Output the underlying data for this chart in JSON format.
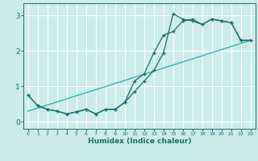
{
  "xlabel": "Humidex (Indice chaleur)",
  "background_color": "#ccecea",
  "grid_color": "#ffffff",
  "line_color": "#1a6b6b",
  "line_color2": "#2ab5b0",
  "xlim": [
    -0.5,
    23.5
  ],
  "ylim": [
    -0.2,
    3.35
  ],
  "xticks": [
    0,
    1,
    2,
    3,
    4,
    5,
    6,
    7,
    8,
    9,
    10,
    11,
    12,
    13,
    14,
    15,
    16,
    17,
    18,
    19,
    20,
    21,
    22,
    23
  ],
  "yticks": [
    0,
    1,
    2,
    3
  ],
  "series1_x": [
    0,
    1,
    2,
    3,
    4,
    5,
    6,
    7,
    8,
    9,
    10,
    11,
    12,
    13,
    14,
    15,
    16,
    17,
    18,
    19,
    20,
    21,
    22,
    23
  ],
  "series1_y": [
    0.75,
    0.45,
    0.35,
    0.3,
    0.22,
    0.28,
    0.35,
    0.22,
    0.35,
    0.35,
    0.55,
    0.85,
    1.15,
    1.45,
    1.95,
    3.05,
    2.9,
    2.85,
    2.75,
    2.9,
    2.85,
    2.8,
    2.3,
    2.3
  ],
  "series2_x": [
    0,
    1,
    2,
    3,
    4,
    5,
    6,
    7,
    8,
    9,
    10,
    11,
    12,
    13,
    14,
    15,
    16,
    17,
    18,
    19,
    20,
    21,
    22,
    23
  ],
  "series2_y": [
    0.75,
    0.45,
    0.35,
    0.3,
    0.22,
    0.28,
    0.35,
    0.22,
    0.35,
    0.35,
    0.55,
    1.15,
    1.35,
    1.95,
    2.45,
    2.55,
    2.85,
    2.9,
    2.75,
    2.9,
    2.85,
    2.8,
    2.3,
    2.3
  ],
  "series3_x": [
    0,
    23
  ],
  "series3_y": [
    0.3,
    2.3
  ]
}
